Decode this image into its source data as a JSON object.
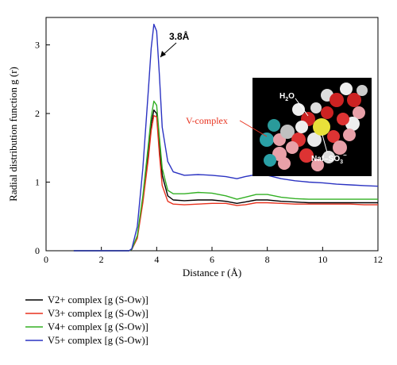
{
  "chart_data": {
    "type": "line",
    "title": "",
    "xlabel": "Distance r (Å)",
    "ylabel": "Radial distribution function g (r)",
    "xlim": [
      0,
      12
    ],
    "ylim": [
      0,
      3.4
    ],
    "xticks": [
      0,
      2,
      4,
      6,
      8,
      10,
      12
    ],
    "yticks": [
      0,
      1,
      2,
      3
    ],
    "grid": false,
    "legend_position": "below-left",
    "series": [
      {
        "name": "V2+ complex [g (S-Ow)]",
        "color": "#000000",
        "x": [
          1.0,
          3.0,
          3.1,
          3.3,
          3.5,
          3.7,
          3.8,
          3.9,
          4.0,
          4.1,
          4.2,
          4.4,
          4.6,
          5.0,
          5.5,
          6.0,
          6.5,
          6.9,
          7.2,
          7.6,
          8.0,
          8.5,
          9.0,
          9.5,
          10.0,
          10.5,
          11.0,
          11.5,
          12.0
        ],
        "y": [
          0.0,
          0.0,
          0.02,
          0.2,
          0.75,
          1.45,
          1.85,
          2.05,
          2.0,
          1.55,
          1.1,
          0.8,
          0.74,
          0.73,
          0.74,
          0.74,
          0.72,
          0.69,
          0.71,
          0.74,
          0.74,
          0.72,
          0.71,
          0.7,
          0.7,
          0.7,
          0.7,
          0.7,
          0.7
        ]
      },
      {
        "name": "V3+ complex [g (S-Ow)]",
        "color": "#e8321e",
        "x": [
          1.0,
          3.0,
          3.1,
          3.3,
          3.5,
          3.7,
          3.8,
          3.9,
          4.0,
          4.1,
          4.2,
          4.4,
          4.6,
          5.0,
          5.5,
          6.0,
          6.5,
          6.9,
          7.2,
          7.6,
          8.0,
          8.5,
          9.0,
          9.5,
          10.0,
          10.5,
          11.0,
          11.5,
          12.0
        ],
        "y": [
          0.0,
          0.0,
          0.02,
          0.18,
          0.7,
          1.35,
          1.75,
          1.97,
          1.95,
          1.4,
          0.95,
          0.72,
          0.68,
          0.67,
          0.68,
          0.69,
          0.69,
          0.66,
          0.67,
          0.7,
          0.7,
          0.69,
          0.68,
          0.68,
          0.68,
          0.68,
          0.68,
          0.67,
          0.67
        ]
      },
      {
        "name": "V4+ complex [g (S-Ow)]",
        "color": "#33b024",
        "x": [
          1.0,
          3.0,
          3.1,
          3.3,
          3.5,
          3.7,
          3.8,
          3.9,
          4.0,
          4.1,
          4.2,
          4.4,
          4.6,
          5.0,
          5.5,
          6.0,
          6.5,
          6.9,
          7.2,
          7.6,
          8.0,
          8.5,
          9.0,
          9.5,
          10.0,
          10.5,
          11.0,
          11.5,
          12.0
        ],
        "y": [
          0.0,
          0.0,
          0.02,
          0.22,
          0.8,
          1.55,
          1.95,
          2.18,
          2.12,
          1.65,
          1.2,
          0.88,
          0.83,
          0.83,
          0.85,
          0.84,
          0.8,
          0.75,
          0.78,
          0.82,
          0.82,
          0.78,
          0.76,
          0.75,
          0.75,
          0.75,
          0.75,
          0.75,
          0.75
        ]
      },
      {
        "name": "V5+ complex [g (S-Ow)]",
        "color": "#2b33c2",
        "x": [
          1.0,
          3.0,
          3.1,
          3.3,
          3.5,
          3.7,
          3.8,
          3.9,
          4.0,
          4.1,
          4.2,
          4.4,
          4.6,
          5.0,
          5.5,
          6.0,
          6.5,
          6.9,
          7.2,
          7.6,
          8.0,
          8.5,
          9.0,
          9.5,
          10.0,
          10.5,
          11.0,
          11.5,
          12.0
        ],
        "y": [
          0.0,
          0.0,
          0.03,
          0.35,
          1.2,
          2.35,
          2.95,
          3.3,
          3.2,
          2.55,
          1.8,
          1.3,
          1.15,
          1.1,
          1.11,
          1.1,
          1.08,
          1.05,
          1.08,
          1.11,
          1.1,
          1.05,
          1.02,
          1.0,
          0.99,
          0.97,
          0.96,
          0.95,
          0.94
        ]
      }
    ],
    "annotations": [
      {
        "text": "3.8Å",
        "points_to_x": 4.0,
        "points_to_y": 3.05
      }
    ],
    "inset": {
      "label": "V-complex",
      "label_color": "#e8321e",
      "texts": [
        "H2O",
        "Naf–SO3−"
      ]
    }
  }
}
